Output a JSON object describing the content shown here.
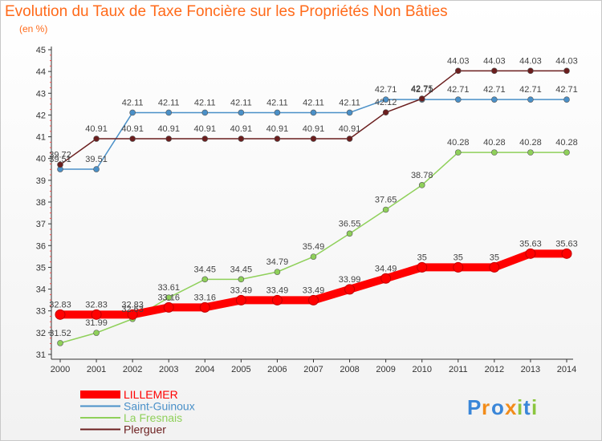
{
  "chart_data": {
    "type": "line",
    "title": "Evolution du Taux de Taxe Foncière sur les Propriétés Non Bâties",
    "subtitle": "(en %)",
    "x": [
      "2000",
      "2001",
      "2002",
      "2003",
      "2004",
      "2005",
      "2006",
      "2007",
      "2008",
      "2009",
      "2010",
      "2011",
      "2012",
      "2013",
      "2014"
    ],
    "yticks": [
      "31",
      "32",
      "33",
      "34",
      "35",
      "36",
      "37",
      "38",
      "39",
      "40",
      "41",
      "42",
      "43",
      "44",
      "45"
    ],
    "ylim": [
      31,
      45
    ],
    "grid": false,
    "legend_position": "bottom-left",
    "series": [
      {
        "name": "LILLEMER",
        "color": "#ff0000",
        "values": [
          32.83,
          32.83,
          32.83,
          33.16,
          33.16,
          33.49,
          33.49,
          33.49,
          33.99,
          34.49,
          35,
          35,
          35,
          35.63,
          35.63
        ],
        "labels": [
          "32.83",
          "32.83",
          "32.83",
          "33.16",
          "33.16",
          "33.49",
          "33.49",
          "33.49",
          "33.99",
          "34.49",
          "35",
          "35",
          "35",
          "35.63",
          "35.63"
        ]
      },
      {
        "name": "Saint-Guinoux",
        "color": "#4a90c8",
        "values": [
          39.51,
          39.51,
          42.11,
          42.11,
          42.11,
          42.11,
          42.11,
          42.11,
          42.11,
          42.71,
          42.71,
          42.71,
          42.71,
          42.71,
          42.71
        ],
        "labels": [
          "39.51",
          "39.51",
          "42.11",
          "42.11",
          "42.11",
          "42.11",
          "42.11",
          "42.11",
          "42.11",
          "42.71",
          "42.71",
          "42.71",
          "42.71",
          "42.71",
          "42.71"
        ]
      },
      {
        "name": "La Fresnais",
        "color": "#8fd05a",
        "values": [
          31.52,
          31.99,
          32.63,
          33.61,
          34.45,
          34.45,
          34.79,
          35.49,
          36.55,
          37.65,
          38.78,
          40.28,
          40.28,
          40.28,
          40.28
        ],
        "labels": [
          "31.52",
          "31.99",
          "32.63",
          "33.61",
          "34.45",
          "34.45",
          "34.79",
          "35.49",
          "36.55",
          "37.65",
          "38.78",
          "40.28",
          "40.28",
          "40.28",
          "40.28"
        ]
      },
      {
        "name": "Plerguer",
        "color": "#6b1e1e",
        "values": [
          39.72,
          40.91,
          40.91,
          40.91,
          40.91,
          40.91,
          40.91,
          40.91,
          40.91,
          42.12,
          42.75,
          44.03,
          44.03,
          44.03,
          44.03
        ],
        "labels": [
          "39.72",
          "40.91",
          "40.91",
          "40.91",
          "40.91",
          "40.91",
          "40.91",
          "40.91",
          "40.91",
          "42.12",
          "42.75",
          "44.03",
          "44.03",
          "44.03",
          "44.03"
        ]
      }
    ]
  },
  "logo": {
    "letters": [
      "P",
      "r",
      "o",
      "x",
      "i",
      "t",
      "i"
    ],
    "colors": [
      "#3a86d8",
      "#f28c1a",
      "#3a86d8",
      "#f28c1a",
      "#8cc63f",
      "#3a86d8",
      "#8cc63f"
    ]
  }
}
